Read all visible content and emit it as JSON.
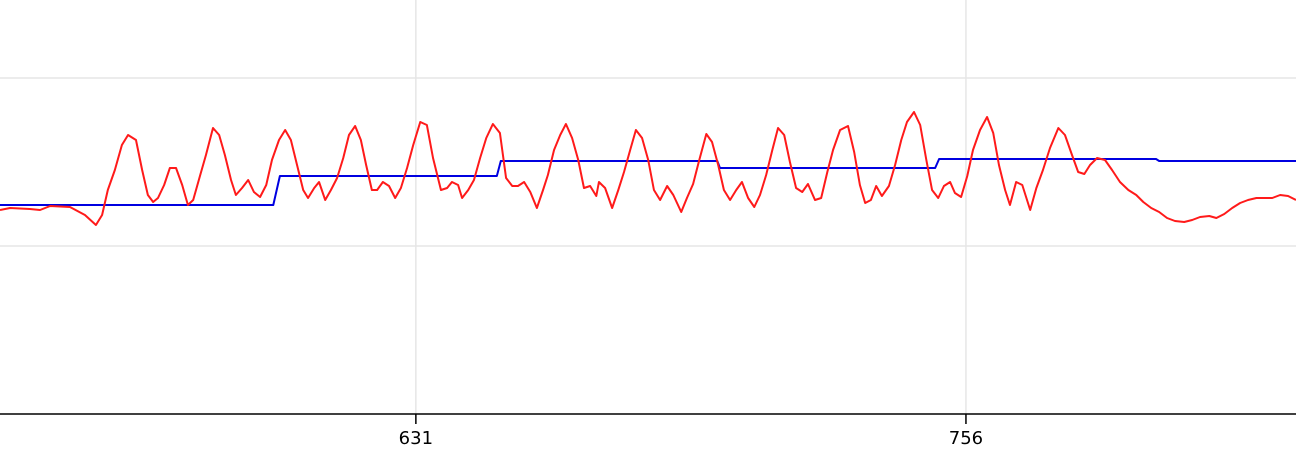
{
  "chart_data": {
    "type": "line",
    "xlim": [
      536.5,
      831.0
    ],
    "ylim": [
      0,
      414
    ],
    "xticks": [
      631,
      756
    ],
    "yticks": [
      168,
      336
    ],
    "grid": true,
    "series": [
      {
        "color": "#0000e0",
        "x": [
          536.5,
          598.6,
          600.1,
          649.4,
          650.3,
          699.5,
          700.1,
          749.0,
          749.9,
          799.2,
          799.9,
          831.0
        ],
        "values": [
          209,
          209,
          238,
          238,
          253,
          253,
          246,
          246,
          255,
          255,
          253,
          253
        ]
      },
      {
        "color": "#ff1a1a",
        "x": [
          536.5,
          538.8,
          543.3,
          545.6,
          547.9,
          552.4,
          555.8,
          558.3,
          559.7,
          561.0,
          562.6,
          564.2,
          565.6,
          567.4,
          568.8,
          570.1,
          571.3,
          572.4,
          573.8,
          575.1,
          576.5,
          577.9,
          579.2,
          580.4,
          582.0,
          583.3,
          584.9,
          586.3,
          587.6,
          589.0,
          590.1,
          591.5,
          592.9,
          594.2,
          595.6,
          597.0,
          598.3,
          599.9,
          601.3,
          602.6,
          604.0,
          605.4,
          606.5,
          607.9,
          609.0,
          610.4,
          611.7,
          613.1,
          614.5,
          615.8,
          617.2,
          618.5,
          619.7,
          621.0,
          622.2,
          623.5,
          624.9,
          626.3,
          627.6,
          629.0,
          630.4,
          632.0,
          633.5,
          634.9,
          636.7,
          638.1,
          639.2,
          640.6,
          641.5,
          642.9,
          644.2,
          645.6,
          647.0,
          648.5,
          650.1,
          651.5,
          652.9,
          654.2,
          655.6,
          657.0,
          658.5,
          659.9,
          661.0,
          662.4,
          663.8,
          665.1,
          666.5,
          667.9,
          669.2,
          670.6,
          672.0,
          672.6,
          674.0,
          675.6,
          677.0,
          678.3,
          679.7,
          681.0,
          682.4,
          683.8,
          685.1,
          686.5,
          688.1,
          689.5,
          691.3,
          692.6,
          694.0,
          695.4,
          697.0,
          698.3,
          699.7,
          701.0,
          702.4,
          703.8,
          705.1,
          706.5,
          707.9,
          709.2,
          710.6,
          712.0,
          713.3,
          714.7,
          716.0,
          717.4,
          718.8,
          720.1,
          721.7,
          723.1,
          724.5,
          725.8,
          727.4,
          729.2,
          730.6,
          731.9,
          733.1,
          734.4,
          735.6,
          736.9,
          738.5,
          739.9,
          741.3,
          742.6,
          744.2,
          745.6,
          747.0,
          748.3,
          749.7,
          751.0,
          752.4,
          753.5,
          754.9,
          756.3,
          757.6,
          759.2,
          760.8,
          762.2,
          763.5,
          764.9,
          766.0,
          767.4,
          768.8,
          770.6,
          772.0,
          773.5,
          775.1,
          777.0,
          778.5,
          780.1,
          781.5,
          782.9,
          784.2,
          785.8,
          787.6,
          789.2,
          791.0,
          792.9,
          794.7,
          796.3,
          798.1,
          799.9,
          801.7,
          803.5,
          805.6,
          807.4,
          809.2,
          811.3,
          812.9,
          814.7,
          816.5,
          818.3,
          820.1,
          822.0,
          823.8,
          825.6,
          827.4,
          829.2,
          831.0
        ],
        "values": [
          204,
          206,
          205,
          204,
          208,
          207,
          199,
          189,
          199,
          224,
          244,
          269,
          279,
          274,
          244,
          219,
          212,
          216,
          229,
          246,
          246,
          229,
          209,
          214,
          239,
          259,
          286,
          279,
          259,
          234,
          219,
          226,
          234,
          222,
          217,
          229,
          254,
          274,
          284,
          274,
          249,
          224,
          216,
          226,
          232,
          214,
          224,
          236,
          256,
          279,
          288,
          274,
          249,
          224,
          224,
          232,
          228,
          216,
          226,
          246,
          269,
          292,
          289,
          256,
          224,
          226,
          232,
          229,
          216,
          224,
          234,
          256,
          276,
          290,
          281,
          236,
          228,
          228,
          232,
          222,
          206,
          224,
          239,
          264,
          279,
          290,
          276,
          254,
          226,
          228,
          218,
          232,
          226,
          206,
          224,
          242,
          264,
          284,
          276,
          254,
          224,
          214,
          228,
          219,
          202,
          216,
          230,
          254,
          280,
          272,
          249,
          224,
          214,
          224,
          232,
          216,
          207,
          219,
          239,
          264,
          286,
          279,
          252,
          226,
          222,
          230,
          214,
          216,
          242,
          264,
          284,
          288,
          262,
          229,
          211,
          214,
          228,
          218,
          228,
          249,
          274,
          292,
          302,
          289,
          254,
          224,
          216,
          228,
          232,
          221,
          217,
          238,
          264,
          284,
          297,
          281,
          249,
          224,
          209,
          232,
          229,
          204,
          226,
          244,
          266,
          286,
          279,
          259,
          242,
          240,
          249,
          256,
          254,
          244,
          232,
          224,
          219,
          212,
          206,
          202,
          196,
          193,
          192,
          194,
          197,
          198,
          196,
          200,
          206,
          211,
          214,
          216,
          216,
          216,
          219,
          218,
          214
        ]
      }
    ]
  }
}
